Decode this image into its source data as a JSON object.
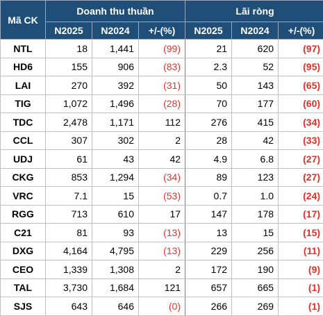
{
  "header": {
    "code_label": "Mã CK",
    "group_revenue": "Doanh thu thuần",
    "group_profit": "Lãi ròng",
    "sub_labels": [
      "N2025",
      "N2024",
      "+/-(%)",
      "N2025",
      "N2024",
      "+/-(%)"
    ]
  },
  "colors": {
    "header_bg": "#1f4e79",
    "negative": "#e0312b"
  },
  "rows": [
    {
      "code": "NTL",
      "rev_2025": "18",
      "rev_2024": "1,441",
      "rev_chg": "(99)",
      "rev_chg_neg": true,
      "np_2025": "21",
      "np_2024": "620",
      "np_chg": "(97)",
      "np_chg_neg": true
    },
    {
      "code": "HD6",
      "rev_2025": "155",
      "rev_2024": "906",
      "rev_chg": "(83)",
      "rev_chg_neg": true,
      "np_2025": "2.3",
      "np_2024": "52",
      "np_chg": "(95)",
      "np_chg_neg": true
    },
    {
      "code": "LAI",
      "rev_2025": "270",
      "rev_2024": "392",
      "rev_chg": "(31)",
      "rev_chg_neg": true,
      "np_2025": "50",
      "np_2024": "143",
      "np_chg": "(65)",
      "np_chg_neg": true
    },
    {
      "code": "TIG",
      "rev_2025": "1,072",
      "rev_2024": "1,496",
      "rev_chg": "(28)",
      "rev_chg_neg": true,
      "np_2025": "70",
      "np_2024": "177",
      "np_chg": "(60)",
      "np_chg_neg": true
    },
    {
      "code": "TDC",
      "rev_2025": "2,478",
      "rev_2024": "1,171",
      "rev_chg": "112",
      "rev_chg_neg": false,
      "np_2025": "276",
      "np_2024": "415",
      "np_chg": "(34)",
      "np_chg_neg": true
    },
    {
      "code": "CCL",
      "rev_2025": "307",
      "rev_2024": "302",
      "rev_chg": "2",
      "rev_chg_neg": false,
      "np_2025": "28",
      "np_2024": "42",
      "np_chg": "(33)",
      "np_chg_neg": true
    },
    {
      "code": "UDJ",
      "rev_2025": "61",
      "rev_2024": "43",
      "rev_chg": "42",
      "rev_chg_neg": false,
      "np_2025": "4.9",
      "np_2024": "6.8",
      "np_chg": "(27)",
      "np_chg_neg": true
    },
    {
      "code": "CKG",
      "rev_2025": "853",
      "rev_2024": "1,294",
      "rev_chg": "(34)",
      "rev_chg_neg": true,
      "np_2025": "89",
      "np_2024": "123",
      "np_chg": "(27)",
      "np_chg_neg": true
    },
    {
      "code": "VRC",
      "rev_2025": "7.1",
      "rev_2024": "15",
      "rev_chg": "(53)",
      "rev_chg_neg": true,
      "np_2025": "0.7",
      "np_2024": "1.0",
      "np_chg": "(24)",
      "np_chg_neg": true
    },
    {
      "code": "RGG",
      "rev_2025": "713",
      "rev_2024": "610",
      "rev_chg": "17",
      "rev_chg_neg": false,
      "np_2025": "147",
      "np_2024": "178",
      "np_chg": "(17)",
      "np_chg_neg": true
    },
    {
      "code": "C21",
      "rev_2025": "81",
      "rev_2024": "93",
      "rev_chg": "(13)",
      "rev_chg_neg": true,
      "np_2025": "13",
      "np_2024": "15",
      "np_chg": "(15)",
      "np_chg_neg": true
    },
    {
      "code": "DXG",
      "rev_2025": "4,164",
      "rev_2024": "4,795",
      "rev_chg": "(13)",
      "rev_chg_neg": true,
      "np_2025": "229",
      "np_2024": "256",
      "np_chg": "(11)",
      "np_chg_neg": true
    },
    {
      "code": "CEO",
      "rev_2025": "1,339",
      "rev_2024": "1,308",
      "rev_chg": "2",
      "rev_chg_neg": false,
      "np_2025": "172",
      "np_2024": "190",
      "np_chg": "(9)",
      "np_chg_neg": true
    },
    {
      "code": "TAL",
      "rev_2025": "3,730",
      "rev_2024": "1,684",
      "rev_chg": "121",
      "rev_chg_neg": false,
      "np_2025": "657",
      "np_2024": "665",
      "np_chg": "(1)",
      "np_chg_neg": true
    },
    {
      "code": "SJS",
      "rev_2025": "643",
      "rev_2024": "646",
      "rev_chg": "(0)",
      "rev_chg_neg": true,
      "np_2025": "266",
      "np_2024": "269",
      "np_chg": "(1)",
      "np_chg_neg": true
    }
  ]
}
